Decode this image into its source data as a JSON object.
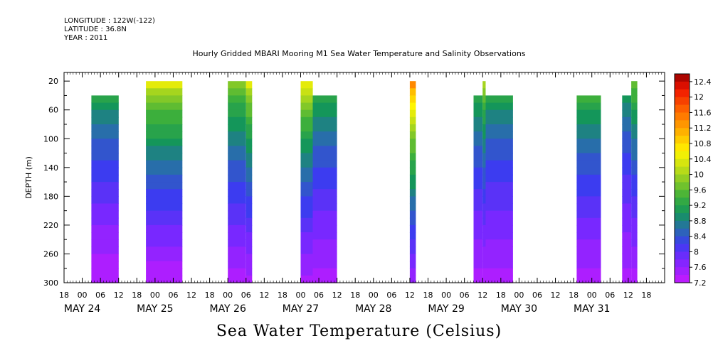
{
  "header": {
    "longitude": "LONGITUDE : 122W(-122)",
    "latitude": "LATITUDE : 36.8N",
    "year": "YEAR : 2011"
  },
  "chart_data": {
    "type": "heatmap",
    "title": "Hourly Gridded MBARI Mooring M1 Sea Water Temperature and Salinity Observations",
    "bottom_title": "Sea Water Temperature (Celsius)",
    "ylabel": "DEPTH (m)",
    "ylim": [
      300,
      0
    ],
    "y_ticks": [
      "20",
      "60",
      "100",
      "140",
      "180",
      "220",
      "260",
      "300"
    ],
    "x_hours_start": "May 23 18:00",
    "x_hour_ticks": [
      "18",
      "00",
      "06",
      "12",
      "18",
      "00",
      "06",
      "12",
      "18",
      "00",
      "06",
      "12",
      "18",
      "00",
      "06",
      "12",
      "18",
      "00",
      "06",
      "12",
      "18",
      "00",
      "06",
      "12",
      "18",
      "00",
      "06",
      "12",
      "18",
      "00",
      "06",
      "12",
      "18"
    ],
    "x_day_labels": [
      "MAY 24",
      "MAY 25",
      "MAY 26",
      "MAY 27",
      "MAY 28",
      "MAY 29",
      "MAY 30",
      "MAY 31"
    ],
    "colorbar": {
      "labels": [
        "12.4",
        "12",
        "11.6",
        "11.2",
        "10.8",
        "10.4",
        "10",
        "9.6",
        "9.2",
        "8.8",
        "8.4",
        "8",
        "7.6",
        "7.2"
      ],
      "min": 7.2,
      "max": 12.6,
      "step": 0.2
    },
    "data_blocks": [
      {
        "start": "May 24 03:00",
        "end": "May 24 12:00",
        "top_depth": 40,
        "surface_temp": 9.4,
        "bottom_temp": 7.3
      },
      {
        "start": "May 24 21:00",
        "end": "May 25 09:00",
        "top_depth": 20,
        "surface_temp": 10.6,
        "bottom_temp": 7.3
      },
      {
        "start": "May 26 00:00",
        "end": "May 26 06:00",
        "top_depth": 20,
        "surface_temp": 10.0,
        "bottom_temp": 7.4
      },
      {
        "start": "May 26 06:00",
        "end": "May 26 08:00",
        "top_depth": 20,
        "surface_temp": 10.6,
        "bottom_temp": 7.4
      },
      {
        "start": "May 27 00:00",
        "end": "May 27 04:00",
        "top_depth": 20,
        "surface_temp": 10.7,
        "bottom_temp": 7.4
      },
      {
        "start": "May 27 04:00",
        "end": "May 27 12:00",
        "top_depth": 40,
        "surface_temp": 9.4,
        "bottom_temp": 7.4
      },
      {
        "start": "May 28 12:00",
        "end": "May 28 14:00",
        "top_depth": 20,
        "surface_temp": 11.8,
        "bottom_temp": 7.5
      },
      {
        "start": "May 29 09:00",
        "end": "May 29 12:00",
        "top_depth": 40,
        "surface_temp": 9.4,
        "bottom_temp": 7.4
      },
      {
        "start": "May 29 12:00",
        "end": "May 29 13:00",
        "top_depth": 20,
        "surface_temp": 10.2,
        "bottom_temp": 7.4
      },
      {
        "start": "May 29 13:00",
        "end": "May 29 22:00",
        "top_depth": 40,
        "surface_temp": 9.3,
        "bottom_temp": 7.4
      },
      {
        "start": "May 30 19:00",
        "end": "May 31 03:00",
        "top_depth": 40,
        "surface_temp": 9.6,
        "bottom_temp": 7.4
      },
      {
        "start": "May 31 10:00",
        "end": "May 31 13:00",
        "top_depth": 40,
        "surface_temp": 9.2,
        "bottom_temp": 7.4
      },
      {
        "start": "May 31 13:00",
        "end": "May 31 15:00",
        "top_depth": 20,
        "surface_temp": 9.9,
        "bottom_temp": 7.4
      }
    ]
  }
}
